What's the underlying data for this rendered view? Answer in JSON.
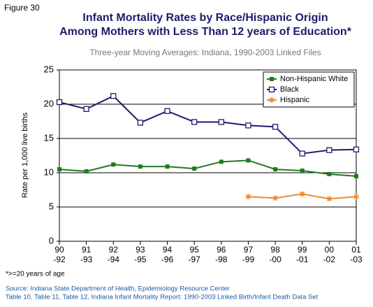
{
  "figure_label": "Figure 30",
  "chart_data": {
    "type": "line",
    "title": [
      "Infant Mortality Rates by Race/Hispanic Origin",
      "Among Mothers with Less Than 12 years of Education*"
    ],
    "subtitle": "Three-year Moving Averages: Indiana, 1990-2003 Linked Files",
    "y_label": "Rate per 1,000 live births",
    "categories": [
      "90\n-92",
      "91\n-93",
      "92\n-94",
      "93\n-95",
      "94\n-96",
      "95\n-97",
      "96\n-98",
      "97\n-99",
      "98\n-00",
      "99\n-01",
      "00\n-02",
      "01\n-03"
    ],
    "series": [
      {
        "name": "Non-Hispanic White",
        "color": "#1f7a1f",
        "marker": "filled-square",
        "values": [
          10.5,
          10.2,
          11.2,
          10.9,
          10.9,
          10.6,
          11.6,
          11.8,
          10.5,
          10.3,
          9.8,
          9.5
        ]
      },
      {
        "name": "Black",
        "color": "#1c1c6b",
        "marker": "open-square",
        "values": [
          20.3,
          19.3,
          21.2,
          17.3,
          19.0,
          17.4,
          17.4,
          16.9,
          16.7,
          12.8,
          13.3,
          13.4
        ]
      },
      {
        "name": "Hispanic",
        "color": "#f0882e",
        "marker": "star",
        "values": [
          null,
          null,
          null,
          null,
          null,
          null,
          null,
          6.5,
          6.3,
          6.9,
          6.2,
          6.5
        ]
      }
    ],
    "ylim": [
      0,
      25
    ],
    "yticks": [
      0,
      5,
      10,
      15,
      20,
      25
    ],
    "grid": true,
    "legend": "top-right"
  },
  "footnote": "*>=20 years of age",
  "source": [
    "Source: Indiana State Department of Health, Epidemiology Resource Center",
    "Table 10, Table 11, Table 12, Indiana Infant Mortality Report: 1990-2003 Linked Birth/Infant Death Data Set"
  ]
}
